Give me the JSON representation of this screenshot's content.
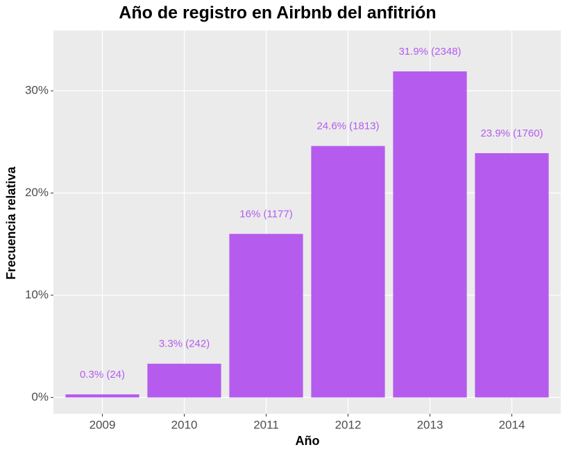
{
  "chart_data": {
    "type": "bar",
    "title": "Año de registro en Airbnb del anfitrión",
    "x_label": "Año",
    "y_label": "Frecuencia relativa",
    "categories": [
      "2009",
      "2010",
      "2011",
      "2012",
      "2013",
      "2014"
    ],
    "values": [
      0.3,
      3.3,
      16,
      24.6,
      31.9,
      23.9
    ],
    "value_labels": [
      "0.3% (24)",
      "3.3% (242)",
      "16% (1177)",
      "24.6% (1813)",
      "31.9% (2348)",
      "23.9% (1760)"
    ],
    "color": "#b55bee",
    "ylim": [
      -1.6,
      35.9
    ],
    "yticks": [
      {
        "value": 0,
        "label": "0%"
      },
      {
        "value": 10,
        "label": "10%"
      },
      {
        "value": 20,
        "label": "20%"
      },
      {
        "value": 30,
        "label": "30%"
      }
    ],
    "grid": true
  }
}
